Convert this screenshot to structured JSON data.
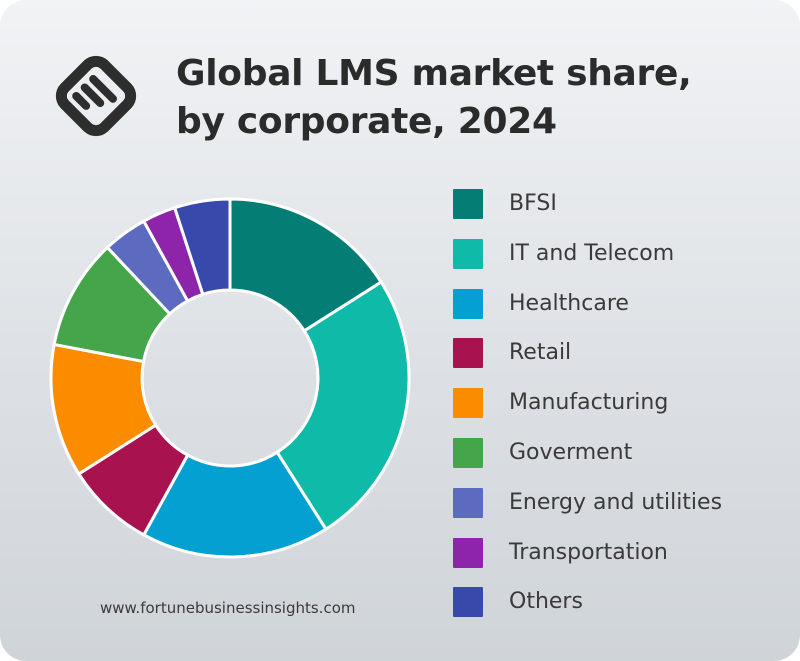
{
  "title_lines": [
    "Global LMS market share,",
    "by corporate, 2024"
  ],
  "source": "www.fortunebusinessinsights.com",
  "logo_icon": "fortune-business-insights-logo-icon",
  "chart_data": {
    "type": "pie",
    "style": "donut",
    "title": "Global LMS market share, by corporate, 2024",
    "legend_position": "right",
    "categories": [
      "BFSI",
      "IT and Telecom",
      "Healthcare",
      "Retail",
      "Manufacturing",
      "Goverment",
      "Energy and utilities",
      "Transportation",
      "Others"
    ],
    "values": [
      16,
      25,
      17,
      8,
      12,
      10,
      4,
      3,
      5
    ],
    "colors": [
      "#047e74",
      "#0fbaa8",
      "#04a0d1",
      "#a8124e",
      "#fb8c00",
      "#44a54a",
      "#5c6bc0",
      "#8e24aa",
      "#3949ab"
    ]
  }
}
